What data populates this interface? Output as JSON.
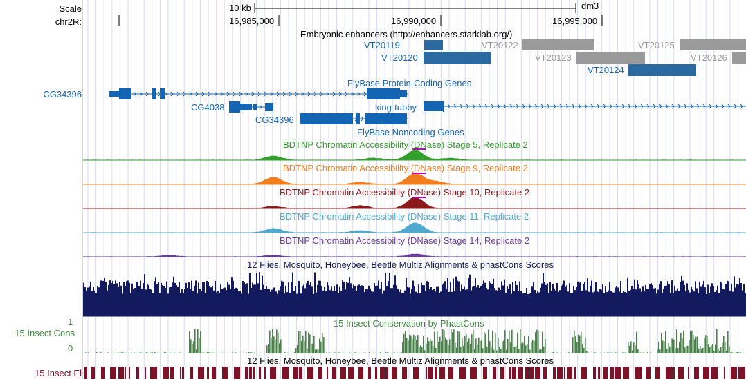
{
  "ruler": {
    "scale_label": "Scale",
    "chrom_label": "chr2R:",
    "scale_bar": "10 kb",
    "assembly": "dm3",
    "ticks": [
      "16,985,000",
      "16,990,000",
      "16,995,000"
    ]
  },
  "tracks": {
    "enhancers": {
      "title": "Embryonic enhancers (http://enhancers.starklab.org/)",
      "items": [
        "VT20119",
        "VT20120",
        "VT20122",
        "VT20123",
        "VT20124",
        "VT20125",
        "VT20126"
      ]
    },
    "flybase_coding": {
      "title": "FlyBase Protein-Coding Genes",
      "side_label": "CG34396",
      "genes": [
        "CG4038",
        "CG34396",
        "king-tubby"
      ]
    },
    "flybase_noncoding": {
      "title": "FlyBase Noncoding Genes"
    },
    "dnase": [
      {
        "title": "BDTNP Chromatin Accessibility (DNase) Stage 5, Replicate 2",
        "color": "#33a02c"
      },
      {
        "title": "BDTNP Chromatin Accessibility (DNase) Stage 9, Replicate 2",
        "color": "#f07d1e"
      },
      {
        "title": "BDTNP Chromatin Accessibility (DNase) Stage 10, Replicate 2",
        "color": "#8b1a1a"
      },
      {
        "title": "BDTNP Chromatin Accessibility (DNase) Stage 11, Replicate 2",
        "color": "#4fa8d0"
      },
      {
        "title": "BDTNP Chromatin Accessibility (DNase) Stage 14, Replicate 2",
        "color": "#6a3d9a"
      }
    ],
    "multiz": {
      "title": "12 Flies, Mosquito, Honeybee, Beetle Multiz Alignments & phastCons Scores",
      "color": "#141a5e"
    },
    "phastcons": {
      "title": "15 Insect Conservation by PhastCons",
      "side_label": "15 Insect Cons",
      "axis_top": "1",
      "axis_bottom": "0",
      "color": "#3f8a3f"
    },
    "elements": {
      "title": "12 Flies, Mosquito, Honeybee, Beetle Multiz Alignments & phastCons Scores",
      "side_label": "15 Insect El",
      "color": "#7b1428"
    }
  },
  "colors": {
    "gene": "#1464b4",
    "enh_dark": "#2a6aa0",
    "enh_grey": "#9a9a9a",
    "grid": "#d8d8f4"
  }
}
